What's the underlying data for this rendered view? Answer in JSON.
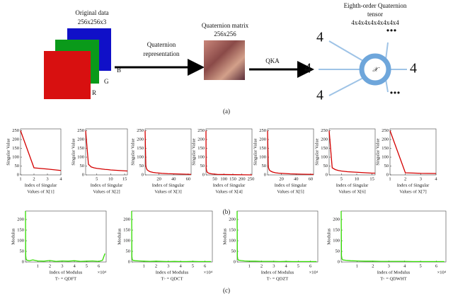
{
  "figure": {
    "panel_a": {
      "original_title": "Original data",
      "original_size": "256x256x3",
      "channel_b": "B",
      "channel_g": "G",
      "channel_r": "R",
      "arrow1_line1": "Quaternion",
      "arrow1_line2": "representation",
      "matrix_title": "Quaternion matrix",
      "matrix_size": "256x256",
      "arrow2": "QKA",
      "tensor_line1": "Eighth-order Quaternion",
      "tensor_line2": "tensor",
      "tensor_dims": "4x4x4x4x4x4x4x4",
      "tensor_symbol": "𝒳",
      "dims": [
        "4",
        "4",
        "4",
        "4"
      ],
      "dots": [
        "...",
        "..."
      ]
    },
    "captions": {
      "a": "(a)",
      "b": "(b)",
      "c": "(c)"
    }
  },
  "chart_data": [
    {
      "type": "line",
      "ylabel": "Singular Value",
      "xlabel": [
        "Index of Singular",
        "Values of X[1]"
      ],
      "color": "#d40000",
      "x": [
        1,
        2,
        3,
        4
      ],
      "values": [
        250,
        40,
        33,
        25
      ],
      "xlim": [
        1,
        4
      ],
      "ylim": [
        0,
        260
      ],
      "xticks": [
        1,
        2,
        3,
        4
      ],
      "yticks": [
        0,
        50,
        100,
        150,
        200,
        250
      ]
    },
    {
      "type": "line",
      "ylabel": "Singular Value",
      "xlabel": [
        "Index of Singular",
        "Values of X[2]"
      ],
      "color": "#d40000",
      "x": [
        1,
        2,
        3,
        4,
        5,
        6,
        7,
        8,
        9,
        10,
        11,
        12,
        13,
        14,
        15,
        16
      ],
      "values": [
        250,
        60,
        45,
        40,
        37,
        35,
        33,
        31,
        30,
        28,
        27,
        26,
        25,
        24,
        23,
        22
      ],
      "xlim": [
        1,
        16
      ],
      "ylim": [
        0,
        260
      ],
      "xticks": [
        5,
        10,
        15
      ],
      "yticks": [
        0,
        50,
        100,
        150,
        200,
        250
      ]
    },
    {
      "type": "line",
      "ylabel": "Singular Value",
      "xlabel": [
        "Index of Singular",
        "Values of X[3]"
      ],
      "color": "#d40000",
      "x": [
        1,
        2,
        3,
        4,
        6,
        8,
        12,
        16,
        24,
        32,
        48,
        64
      ],
      "values": [
        250,
        50,
        35,
        28,
        22,
        18,
        14,
        12,
        9,
        7,
        5,
        3
      ],
      "xlim": [
        1,
        64
      ],
      "ylim": [
        0,
        260
      ],
      "xticks": [
        20,
        40,
        60
      ],
      "yticks": [
        0,
        50,
        100,
        150,
        200,
        250
      ]
    },
    {
      "type": "line",
      "ylabel": "Singular Value",
      "xlabel": [
        "Index of Singular",
        "Values of X[4]"
      ],
      "color": "#d40000",
      "x": [
        1,
        2,
        4,
        8,
        16,
        32,
        64,
        128,
        192,
        256
      ],
      "values": [
        250,
        40,
        25,
        15,
        10,
        6,
        3,
        2,
        1,
        0
      ],
      "xlim": [
        1,
        256
      ],
      "ylim": [
        0,
        260
      ],
      "xticks": [
        50,
        100,
        150,
        200,
        250
      ],
      "yticks": [
        0,
        50,
        100,
        150,
        200,
        250
      ]
    },
    {
      "type": "line",
      "ylabel": "Singular Value",
      "xlabel": [
        "Index of Singular",
        "Values of X[5]"
      ],
      "color": "#d40000",
      "x": [
        1,
        2,
        3,
        4,
        6,
        8,
        12,
        16,
        24,
        32,
        48,
        64
      ],
      "values": [
        250,
        45,
        32,
        25,
        20,
        16,
        12,
        10,
        8,
        6,
        4,
        3
      ],
      "xlim": [
        1,
        64
      ],
      "ylim": [
        0,
        260
      ],
      "xticks": [
        20,
        40,
        60
      ],
      "yticks": [
        0,
        50,
        100,
        150,
        200,
        250
      ]
    },
    {
      "type": "line",
      "ylabel": "Singular Value",
      "xlabel": [
        "Index of Singular",
        "Values of X[6]"
      ],
      "color": "#d40000",
      "x": [
        1,
        2,
        3,
        4,
        5,
        6,
        7,
        8,
        9,
        10,
        11,
        12,
        13,
        14,
        15,
        16
      ],
      "values": [
        250,
        40,
        30,
        25,
        22,
        20,
        18,
        17,
        16,
        15,
        14,
        13,
        12,
        11,
        10,
        10
      ],
      "xlim": [
        1,
        16
      ],
      "ylim": [
        0,
        260
      ],
      "xticks": [
        5,
        10,
        15
      ],
      "yticks": [
        0,
        50,
        100,
        150,
        200,
        250
      ]
    },
    {
      "type": "line",
      "ylabel": "Singular Value",
      "xlabel": [
        "Index of Singular",
        "Values of X[7]"
      ],
      "color": "#d40000",
      "x": [
        1,
        2,
        3,
        4
      ],
      "values": [
        250,
        12,
        9,
        8
      ],
      "xlim": [
        1,
        4
      ],
      "ylim": [
        0,
        260
      ],
      "xticks": [
        1,
        2,
        3,
        4
      ],
      "yticks": [
        0,
        50,
        100,
        150,
        200,
        250
      ]
    },
    {
      "type": "line",
      "ylabel": "Modulus",
      "xlabel": [
        "Index of Modulus",
        "T◦ = QDFT"
      ],
      "x_multiplier": "×10⁴",
      "color": "#33dd00",
      "x": [
        0,
        0.02,
        0.05,
        0.1,
        0.3,
        0.6,
        1,
        1.5,
        2,
        2.5,
        3,
        3.5,
        4,
        4.5,
        5,
        5.5,
        6,
        6.3,
        6.5
      ],
      "values": [
        240,
        30,
        14,
        9,
        6,
        10,
        5,
        4,
        7,
        3,
        5,
        4,
        6,
        3,
        4,
        5,
        3,
        8,
        40
      ],
      "xlim": [
        0,
        6.6
      ],
      "ylim": [
        0,
        240
      ],
      "xticks": [
        1,
        2,
        3,
        4,
        5,
        6
      ],
      "yticks": [
        0,
        50,
        100,
        150,
        200
      ]
    },
    {
      "type": "line",
      "ylabel": "Modulus",
      "xlabel": [
        "Index of Modulus",
        "T◦ = QDCT"
      ],
      "x_multiplier": "×10⁴",
      "color": "#33dd00",
      "x": [
        0,
        0.02,
        0.05,
        0.1,
        0.3,
        0.6,
        1,
        1.5,
        2,
        2.5,
        3,
        3.5,
        4,
        4.5,
        5,
        5.5,
        6,
        6.5
      ],
      "values": [
        240,
        25,
        12,
        8,
        6,
        5,
        4,
        3,
        4,
        3,
        2,
        3,
        2,
        2,
        3,
        2,
        2,
        2
      ],
      "xlim": [
        0,
        6.6
      ],
      "ylim": [
        0,
        240
      ],
      "xticks": [
        1,
        2,
        3,
        4,
        5,
        6
      ],
      "yticks": [
        0,
        50,
        100,
        150,
        200
      ]
    },
    {
      "type": "line",
      "ylabel": "Modulus",
      "xlabel": [
        "Index of Modulus",
        "T◦ = QDZT"
      ],
      "x_multiplier": "×10⁴",
      "color": "#33dd00",
      "x": [
        0,
        0.02,
        0.05,
        0.1,
        0.3,
        0.6,
        1,
        1.5,
        2,
        2.5,
        3,
        3.5,
        4,
        4.5,
        5,
        5.5,
        6,
        6.5
      ],
      "values": [
        240,
        28,
        14,
        9,
        7,
        5,
        4,
        4,
        3,
        3,
        3,
        2,
        3,
        2,
        2,
        2,
        2,
        2
      ],
      "xlim": [
        0,
        6.6
      ],
      "ylim": [
        0,
        240
      ],
      "xticks": [
        1,
        2,
        3,
        4,
        5,
        6
      ],
      "yticks": [
        0,
        50,
        100,
        150,
        200
      ]
    },
    {
      "type": "line",
      "ylabel": "Modulus",
      "xlabel": [
        "Index of Modulus",
        "T◦ = QDWHT"
      ],
      "x_multiplier": "×10⁴",
      "color": "#33dd00",
      "x": [
        0,
        0.02,
        0.05,
        0.1,
        0.3,
        0.6,
        1,
        1.5,
        2,
        2.5,
        3,
        3.5,
        4,
        4.5,
        5,
        5.5,
        6,
        6.5
      ],
      "values": [
        240,
        30,
        15,
        10,
        8,
        6,
        5,
        4,
        4,
        3,
        3,
        3,
        3,
        2,
        2,
        2,
        2,
        2
      ],
      "xlim": [
        0,
        6.6
      ],
      "ylim": [
        0,
        240
      ],
      "xticks": [
        1,
        2,
        3,
        4,
        5,
        6
      ],
      "yticks": [
        0,
        50,
        100,
        150,
        200
      ]
    }
  ]
}
